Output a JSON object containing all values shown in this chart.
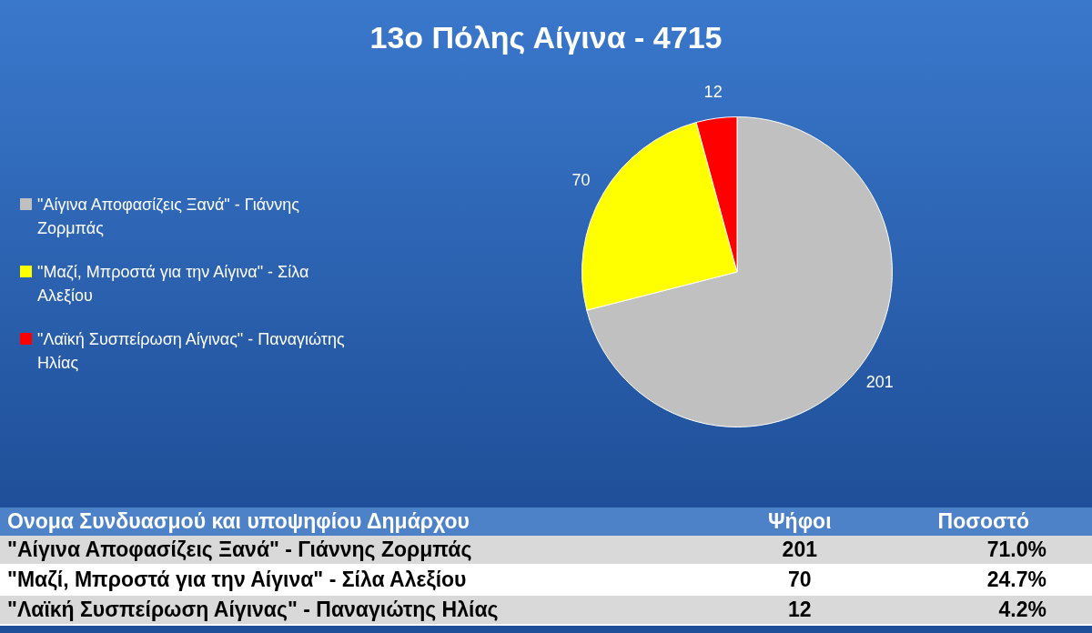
{
  "chart_data": {
    "type": "pie",
    "title": "13ο Πόλης Αίγινα - 4715",
    "categories": [
      "\"Αίγινα Αποφασίζεις Ξανά\" - Γιάννης Ζορμπάς",
      "\"Μαζί, Μπροστά για την Αίγινα\" - Σίλα Αλεξίου",
      "\"Λαϊκή Συσπείρωση Αίγινας\" - Παναγιώτης Ηλίας"
    ],
    "values": [
      201,
      70,
      12
    ],
    "colors": [
      "#c0c0c0",
      "#ffff00",
      "#ff0000"
    ],
    "data_labels": true,
    "legend": "left",
    "annotations": [
      "Ονομα Συνδυασμού και υποψηφίου Δημάρχου",
      "Ψήφοι",
      "Ποσοστό",
      "\"Αίγινα Αποφασίζεις Ξανά\" - Γιάννης Ζορμπάς",
      "201",
      "71.0%",
      "\"Μαζί, Μπροστά για την Αίγινα\" - Σίλα Αλεξίου",
      "70",
      "24.7%",
      "\"Λαϊκή Συσπείρωση Αίγινας\" - Παναγιώτης Ηλίας",
      "12",
      "4.2%"
    ]
  }
}
